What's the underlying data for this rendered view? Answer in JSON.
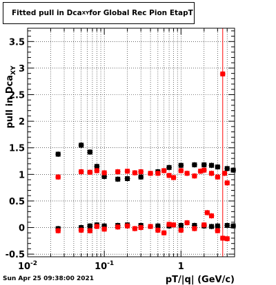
{
  "chart_data": {
    "type": "scatter",
    "title_main": "Fitted pull in Dca",
    "title_sub": "XY",
    "title_rest": " for Global Rec Pion EtapT",
    "xlabel": "pT/|q| (GeV/c)",
    "ylabel_main": "pull in Dca",
    "ylabel_sub": "XY",
    "x_scale": "log",
    "xlim": [
      0.01,
      5.0
    ],
    "ylim": [
      -0.55,
      3.75
    ],
    "y_ticks": [
      -0.5,
      0,
      0.5,
      1,
      1.5,
      2,
      2.5,
      3,
      3.5
    ],
    "y_tick_labels": [
      "-0.5",
      "0",
      "0.5",
      "1",
      "1.5",
      "2",
      "2.5",
      "3",
      "3.5"
    ],
    "x_tick_labels": [
      {
        "value": 0.01,
        "base": "10",
        "exp": "-2"
      },
      {
        "value": 0.1,
        "base": "10",
        "exp": "-1"
      },
      {
        "value": 1,
        "text": "1"
      }
    ],
    "grid": true,
    "series": [
      {
        "color": "#000000",
        "x": [
          0.025,
          0.05,
          0.065,
          0.08,
          0.1,
          0.15,
          0.2,
          0.3,
          0.5,
          0.7,
          1.0,
          1.5,
          2.0,
          2.5,
          3.0,
          4.0,
          4.8
        ],
        "y": [
          1.38,
          1.55,
          1.42,
          1.15,
          0.96,
          0.91,
          0.92,
          0.95,
          1.05,
          1.13,
          1.17,
          1.18,
          1.18,
          1.17,
          1.14,
          1.11,
          1.08
        ]
      },
      {
        "color": "#000000",
        "x": [
          0.025,
          0.05,
          0.065,
          0.08,
          0.1,
          0.15,
          0.2,
          0.3,
          0.5,
          0.7,
          1.0,
          1.5,
          2.0,
          2.5,
          3.0,
          4.0,
          4.8
        ],
        "y": [
          -0.02,
          0.0,
          0.03,
          0.05,
          0.03,
          0.04,
          0.05,
          0.04,
          0.03,
          0.03,
          0.04,
          0.04,
          0.03,
          0.02,
          0.03,
          0.04,
          0.03
        ]
      },
      {
        "color": "#ff0000",
        "x": [
          0.025,
          0.05,
          0.065,
          0.08,
          0.1,
          0.15,
          0.2,
          0.25,
          0.3,
          0.4,
          0.5,
          0.6,
          0.7,
          0.8,
          1.0,
          1.2,
          1.5,
          1.8,
          2.0,
          2.5,
          3.0,
          3.5,
          3.7,
          4.0
        ],
        "y": [
          0.95,
          1.05,
          1.04,
          1.07,
          1.03,
          1.05,
          1.06,
          1.03,
          1.05,
          1.02,
          1.02,
          1.07,
          0.98,
          0.94,
          1.07,
          1.02,
          0.97,
          1.06,
          1.08,
          1.02,
          0.95,
          2.89,
          1.02,
          0.84
        ]
      },
      {
        "color": "#ff0000",
        "x": [
          0.025,
          0.05,
          0.065,
          0.08,
          0.1,
          0.15,
          0.2,
          0.25,
          0.3,
          0.4,
          0.5,
          0.6,
          0.7,
          0.8,
          1.0,
          1.2,
          1.5,
          2.0,
          2.2,
          2.5,
          3.0,
          3.5,
          4.0
        ],
        "y": [
          -0.06,
          -0.05,
          -0.06,
          0.02,
          -0.03,
          0.01,
          0.03,
          -0.02,
          0.0,
          0.02,
          -0.05,
          -0.1,
          0.06,
          0.05,
          -0.05,
          0.09,
          -0.02,
          0.05,
          0.28,
          0.22,
          -0.06,
          -0.2,
          -0.21
        ]
      }
    ]
  },
  "timestamp": "Sun Apr 25 09:38:00 2021"
}
